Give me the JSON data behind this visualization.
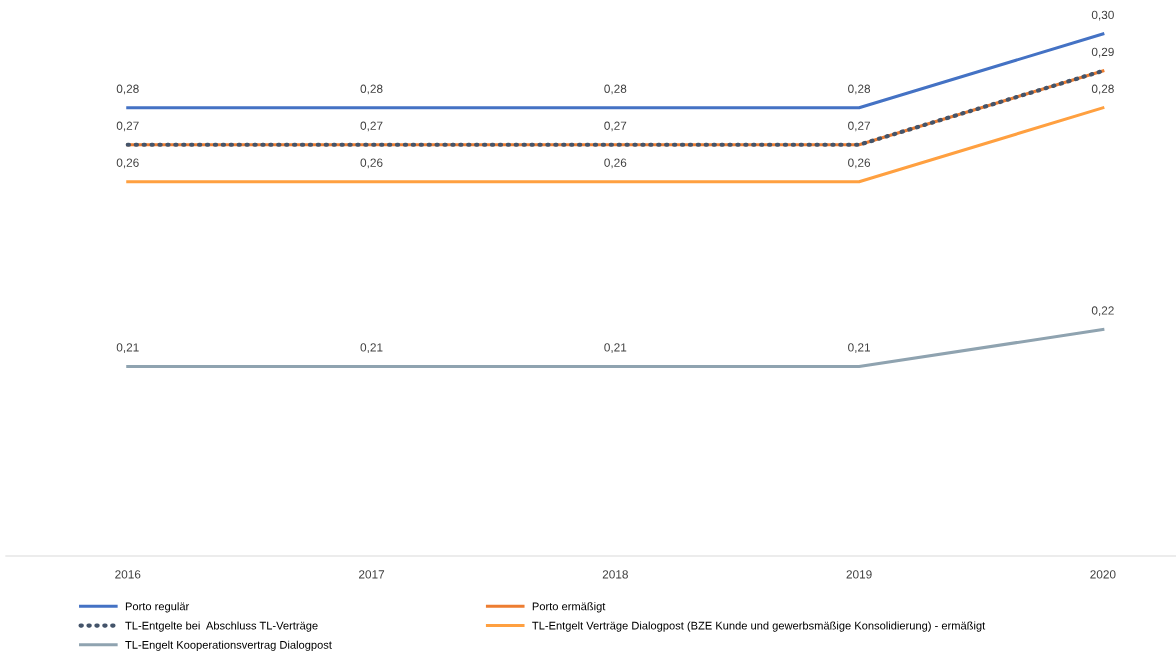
{
  "chart_data": {
    "type": "line",
    "categories": [
      "2016",
      "2017",
      "2018",
      "2019",
      "2020"
    ],
    "tick_labels": "x",
    "grid": false,
    "legend": "bottom",
    "marker": "none",
    "series": [
      {
        "name": "Porto regulär",
        "color": "#4472c4",
        "line_style": "solid",
        "values": [
          0.28,
          0.28,
          0.28,
          0.28,
          0.3
        ],
        "value_labels": [
          "0,28",
          "0,28",
          "0,28",
          "0,28",
          "0,30"
        ]
      },
      {
        "name": "Porto ermäßigt",
        "color": "#ed7d31",
        "line_style": "solid",
        "values": [
          0.27,
          0.27,
          0.27,
          0.27,
          0.29
        ],
        "value_labels": [
          "0,27",
          "0,27",
          "0,27",
          "0,27",
          "0,29"
        ]
      },
      {
        "name": "TL-Entgelte bei  Abschluss TL-Verträge",
        "color": "#44546a",
        "line_style": "dotted",
        "values": [
          0.27,
          0.27,
          0.27,
          0.27,
          0.29
        ],
        "value_labels": [
          null,
          null,
          null,
          null,
          null
        ]
      },
      {
        "name": "TL-Entgelt Verträge Dialogpost (BZE Kunde und gewerbsmäßige Konsolidierung) - ermäßigt",
        "color": "#ffa040",
        "line_style": "solid",
        "values": [
          0.26,
          0.26,
          0.26,
          0.26,
          0.28
        ],
        "value_labels": [
          "0,26",
          "0,26",
          "0,26",
          "0,26",
          "0,28"
        ]
      },
      {
        "name": "TL-Engelt Kooperationsvertrag Dialogpost",
        "color": "#8fa3b0",
        "line_style": "solid",
        "values": [
          0.21,
          0.21,
          0.21,
          0.21,
          0.22
        ],
        "value_labels": [
          "0,21",
          "0,21",
          "0,21",
          "0,21",
          "0,22"
        ]
      }
    ]
  }
}
